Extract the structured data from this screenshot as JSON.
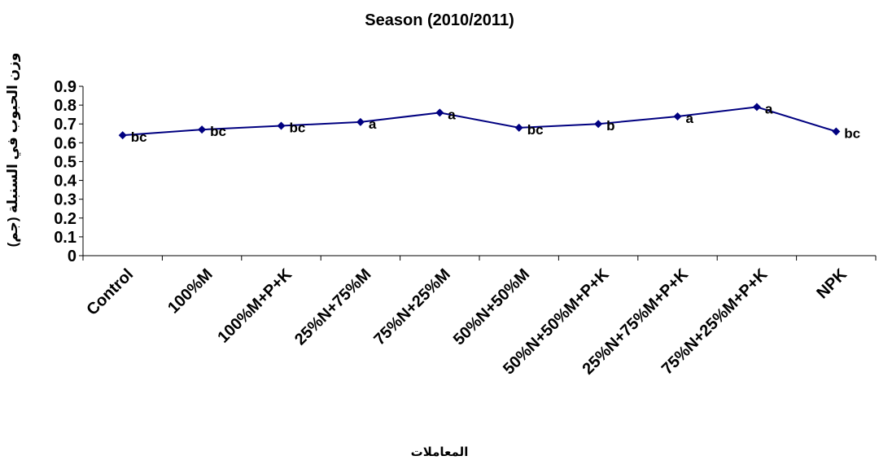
{
  "chart_data": {
    "type": "line",
    "title": "Season (2010/2011)",
    "xlabel": "المعاملات",
    "ylabel": "وزن الحبوب في السنبلة (جم)",
    "categories": [
      "Control",
      "100%M",
      "100%M+P+K",
      "25%N+75%M",
      "75%N+25%M",
      "50%N+50%M",
      "50%N+50%M+P+K",
      "25%N+75%M+P+K",
      "75%N+25%M+P+K",
      "NPK"
    ],
    "values": [
      0.64,
      0.67,
      0.69,
      0.71,
      0.76,
      0.68,
      0.7,
      0.74,
      0.79,
      0.66
    ],
    "point_labels": [
      "bc",
      "bc",
      "bc",
      "a",
      "a",
      "bc",
      "b",
      "a",
      "a",
      "bc"
    ],
    "ylim": [
      0,
      0.9
    ],
    "yticks": [
      "0",
      "0.1",
      "0.2",
      "0.3",
      "0.4",
      "0.5",
      "0.6",
      "0.7",
      "0.8",
      "0.9"
    ],
    "grid": false,
    "legend": "none",
    "line_color": "#000080"
  }
}
